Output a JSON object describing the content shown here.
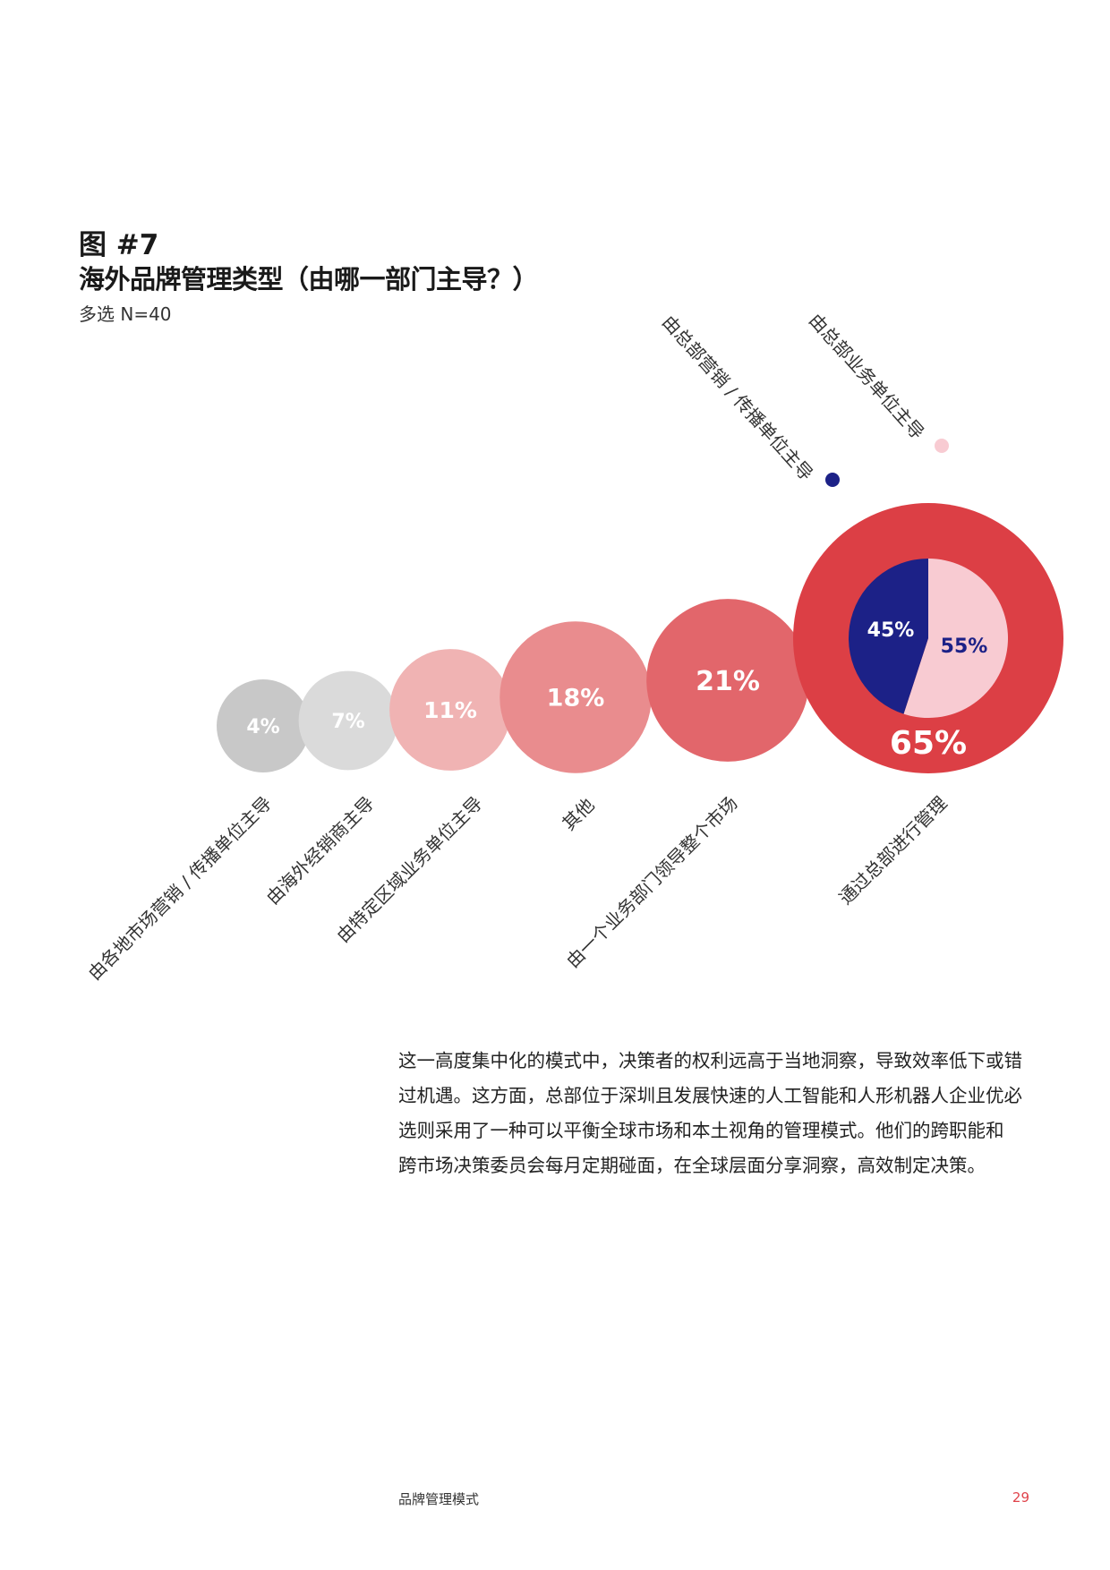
{
  "figure": {
    "number": "图 #7",
    "title": "海外品牌管理类型（由哪一部门主导？）",
    "subtitle": "多选  N=40"
  },
  "chart_data": {
    "type": "bubble",
    "categories": [
      "由各地市场营销 / 传播单位主导",
      "由海外经销商主导",
      "由特定区域业务单位主导",
      "其他",
      "由一个业务部门领导整个市场",
      "通过总部进行管理"
    ],
    "values": [
      4,
      7,
      11,
      18,
      21,
      65
    ],
    "labels": [
      "4%",
      "7%",
      "11%",
      "18%",
      "21%",
      "65%"
    ],
    "colors": [
      "#c8c8c8",
      "#dadada",
      "#f0b3b3",
      "#e98c8e",
      "#e2666b",
      "#dc3f45"
    ],
    "breakdown": {
      "parent": "通过总部进行管理",
      "type": "pie",
      "slices": [
        {
          "name": "由总部业务单位主导",
          "value": 55,
          "label": "55%",
          "color": "#f8cbd2"
        },
        {
          "name": "由总部营销 / 传播单位主导",
          "value": 45,
          "label": "45%",
          "color": "#1c2187"
        }
      ]
    },
    "legend": [
      "由总部营销 / 传播单位主导",
      "由总部业务单位主导"
    ]
  },
  "body": {
    "lines": [
      "这一高度集中化的模式中，决策者的权利远高于当地洞察，导致效率低下或错",
      "过机遇。这方面，总部位于深圳且发展快速的人工智能和人形机器人企业优必",
      "选则采用了一种可以平衡全球市场和本土视角的管理模式。他们的跨职能和",
      "跨市场决策委员会每月定期碰面，在全球层面分享洞察，高效制定决策。"
    ]
  },
  "footer": {
    "title": "品牌管理模式",
    "page": "29",
    "page_color": "#e0434b"
  }
}
